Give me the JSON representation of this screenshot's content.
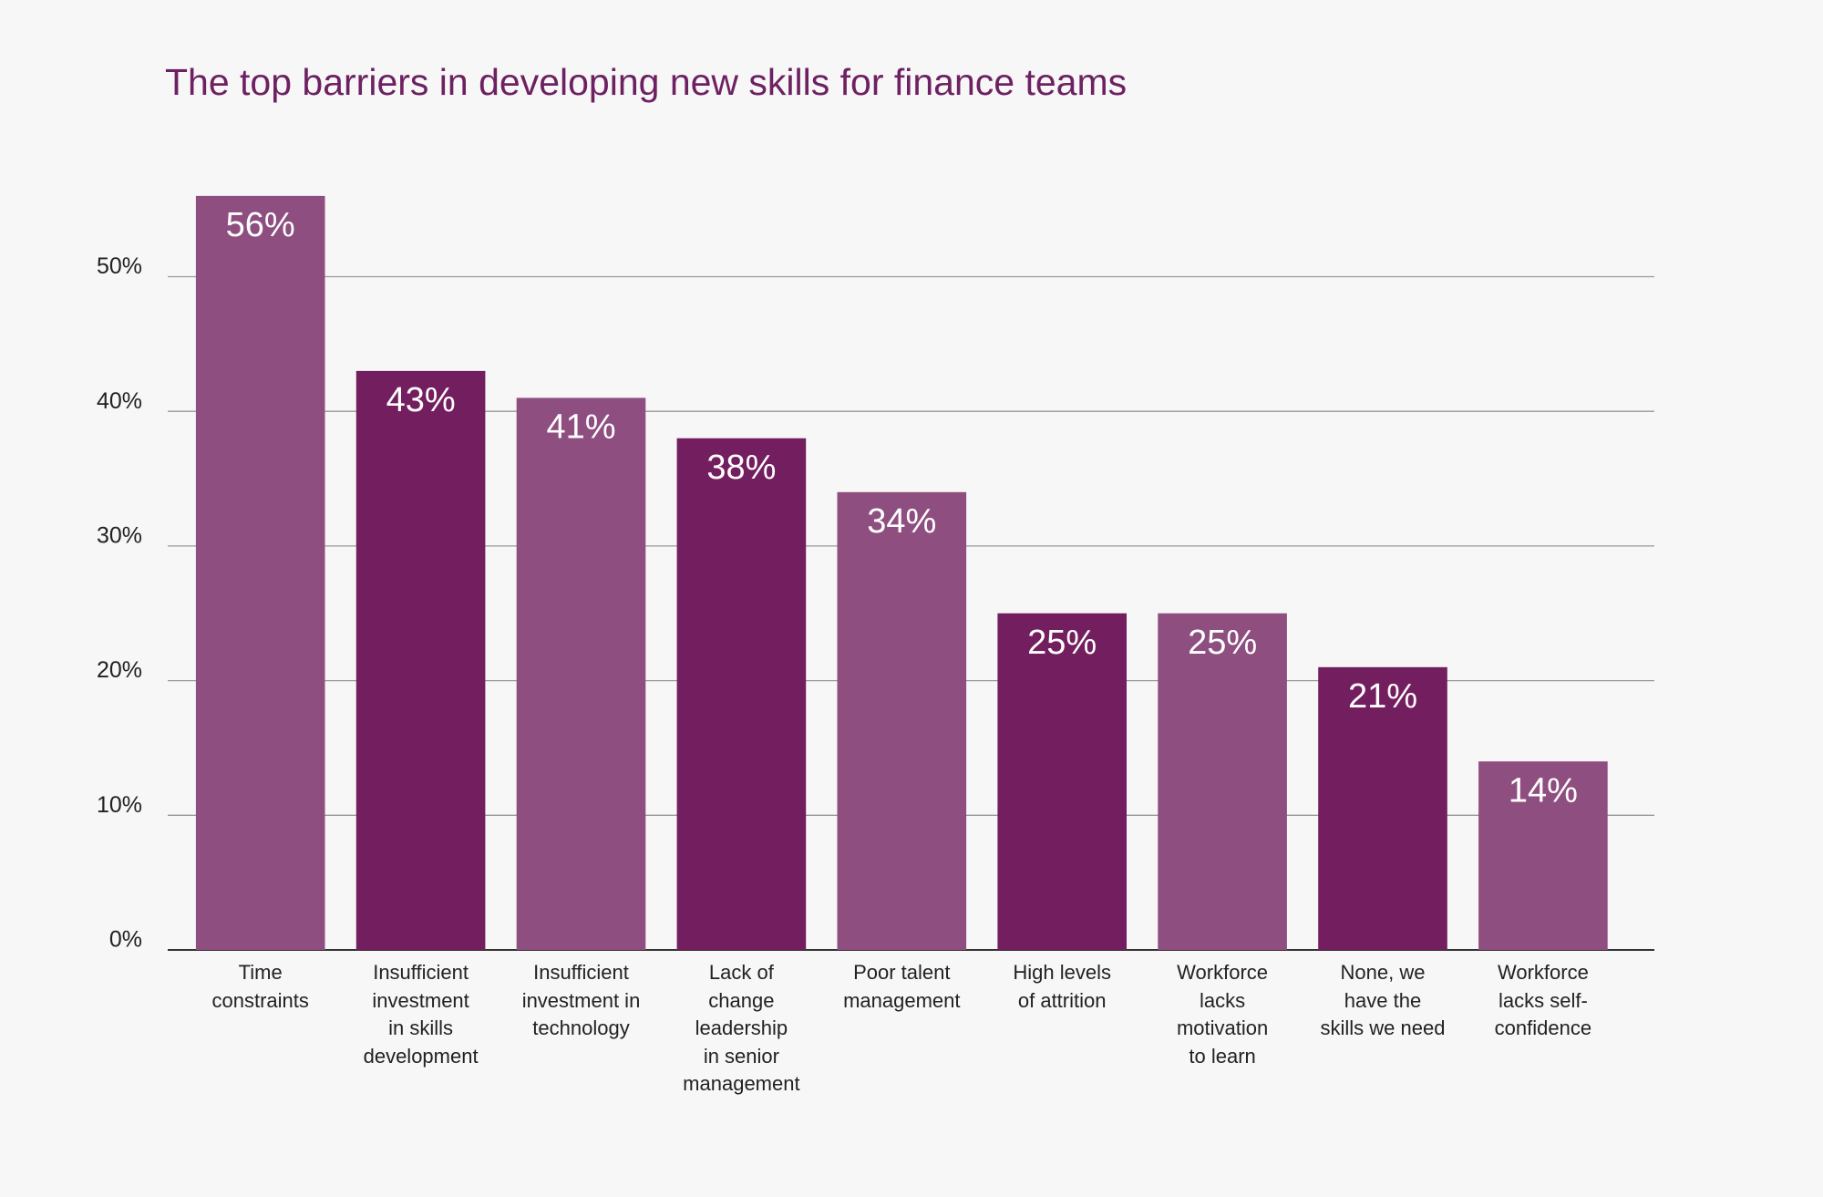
{
  "chart_data": {
    "type": "bar",
    "title": "The top barriers in developing new skills for finance teams",
    "categories": [
      "Time\nconstraints",
      "Insufficient\ninvestment\nin skills\ndevelopment",
      "Insufficient\ninvestment in\ntechnology",
      "Lack of\nchange\nleadership\nin senior\nmanagement",
      "Poor talent\nmanagement",
      "High levels\nof attrition",
      "Workforce\nlacks\nmotivation\nto learn",
      "None, we\nhave the\nskills we need",
      "Workforce\nlacks self-\nconfidence"
    ],
    "values": [
      56,
      43,
      41,
      38,
      34,
      25,
      25,
      21,
      14
    ],
    "value_labels": [
      "56%",
      "43%",
      "41%",
      "38%",
      "34%",
      "25%",
      "25%",
      "21%",
      "14%"
    ],
    "colors": [
      "#8e4e80",
      "#731e5e",
      "#8e4e80",
      "#731e5e",
      "#8e4e80",
      "#731e5e",
      "#8e4e80",
      "#731e5e",
      "#8e4e80"
    ],
    "ylim": [
      0,
      56
    ],
    "yticks": [
      {
        "value": 0,
        "label": "0%"
      },
      {
        "value": 10,
        "label": "10%"
      },
      {
        "value": 20,
        "label": "20%"
      },
      {
        "value": 30,
        "label": "30%"
      },
      {
        "value": 40,
        "label": "40%"
      },
      {
        "value": 50,
        "label": "50%"
      }
    ],
    "grid": true
  }
}
